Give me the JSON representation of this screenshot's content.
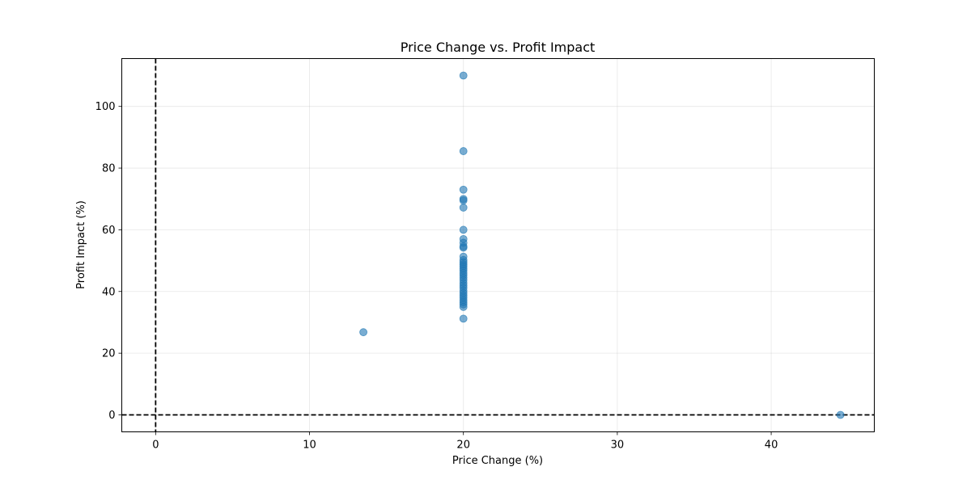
{
  "chart_data": {
    "type": "scatter",
    "title": "Price Change vs. Profit Impact",
    "xlabel": "Price Change (%)",
    "ylabel": "Profit Impact (%)",
    "xlim": [
      -2.2,
      46.7
    ],
    "ylim": [
      -5.5,
      115.5
    ],
    "xticks": [
      0,
      10,
      20,
      30,
      40
    ],
    "yticks": [
      0,
      20,
      40,
      60,
      80,
      100
    ],
    "grid": true,
    "reference_lines": [
      {
        "axis": "x",
        "value": 0,
        "style": "dashed",
        "color": "#000000"
      },
      {
        "axis": "y",
        "value": 0,
        "style": "dashed",
        "color": "#000000"
      }
    ],
    "marker_color": "#1f77b4",
    "marker_alpha": 0.6,
    "points": [
      {
        "x": 20,
        "y": 110
      },
      {
        "x": 20,
        "y": 85.5
      },
      {
        "x": 20,
        "y": 73
      },
      {
        "x": 20,
        "y": 70
      },
      {
        "x": 20,
        "y": 69.5
      },
      {
        "x": 20,
        "y": 67.2
      },
      {
        "x": 20,
        "y": 60
      },
      {
        "x": 20,
        "y": 57
      },
      {
        "x": 20,
        "y": 55.8
      },
      {
        "x": 20,
        "y": 54.6
      },
      {
        "x": 20,
        "y": 54.2
      },
      {
        "x": 20,
        "y": 51.3
      },
      {
        "x": 20,
        "y": 50.2
      },
      {
        "x": 20,
        "y": 49.5
      },
      {
        "x": 20,
        "y": 48.8
      },
      {
        "x": 20,
        "y": 48.2
      },
      {
        "x": 20,
        "y": 47.5
      },
      {
        "x": 20,
        "y": 46.8
      },
      {
        "x": 20,
        "y": 46
      },
      {
        "x": 20,
        "y": 45.3
      },
      {
        "x": 20,
        "y": 44.5
      },
      {
        "x": 20,
        "y": 43.7
      },
      {
        "x": 20,
        "y": 42.8
      },
      {
        "x": 20,
        "y": 42
      },
      {
        "x": 20,
        "y": 41.2
      },
      {
        "x": 20,
        "y": 40.3
      },
      {
        "x": 20,
        "y": 39.5
      },
      {
        "x": 20,
        "y": 38.7
      },
      {
        "x": 20,
        "y": 38
      },
      {
        "x": 20,
        "y": 37.2
      },
      {
        "x": 20,
        "y": 36.5
      },
      {
        "x": 20,
        "y": 35.8
      },
      {
        "x": 20,
        "y": 35
      },
      {
        "x": 20,
        "y": 31.2
      },
      {
        "x": 13.5,
        "y": 26.8
      },
      {
        "x": 44.5,
        "y": 0
      }
    ]
  }
}
